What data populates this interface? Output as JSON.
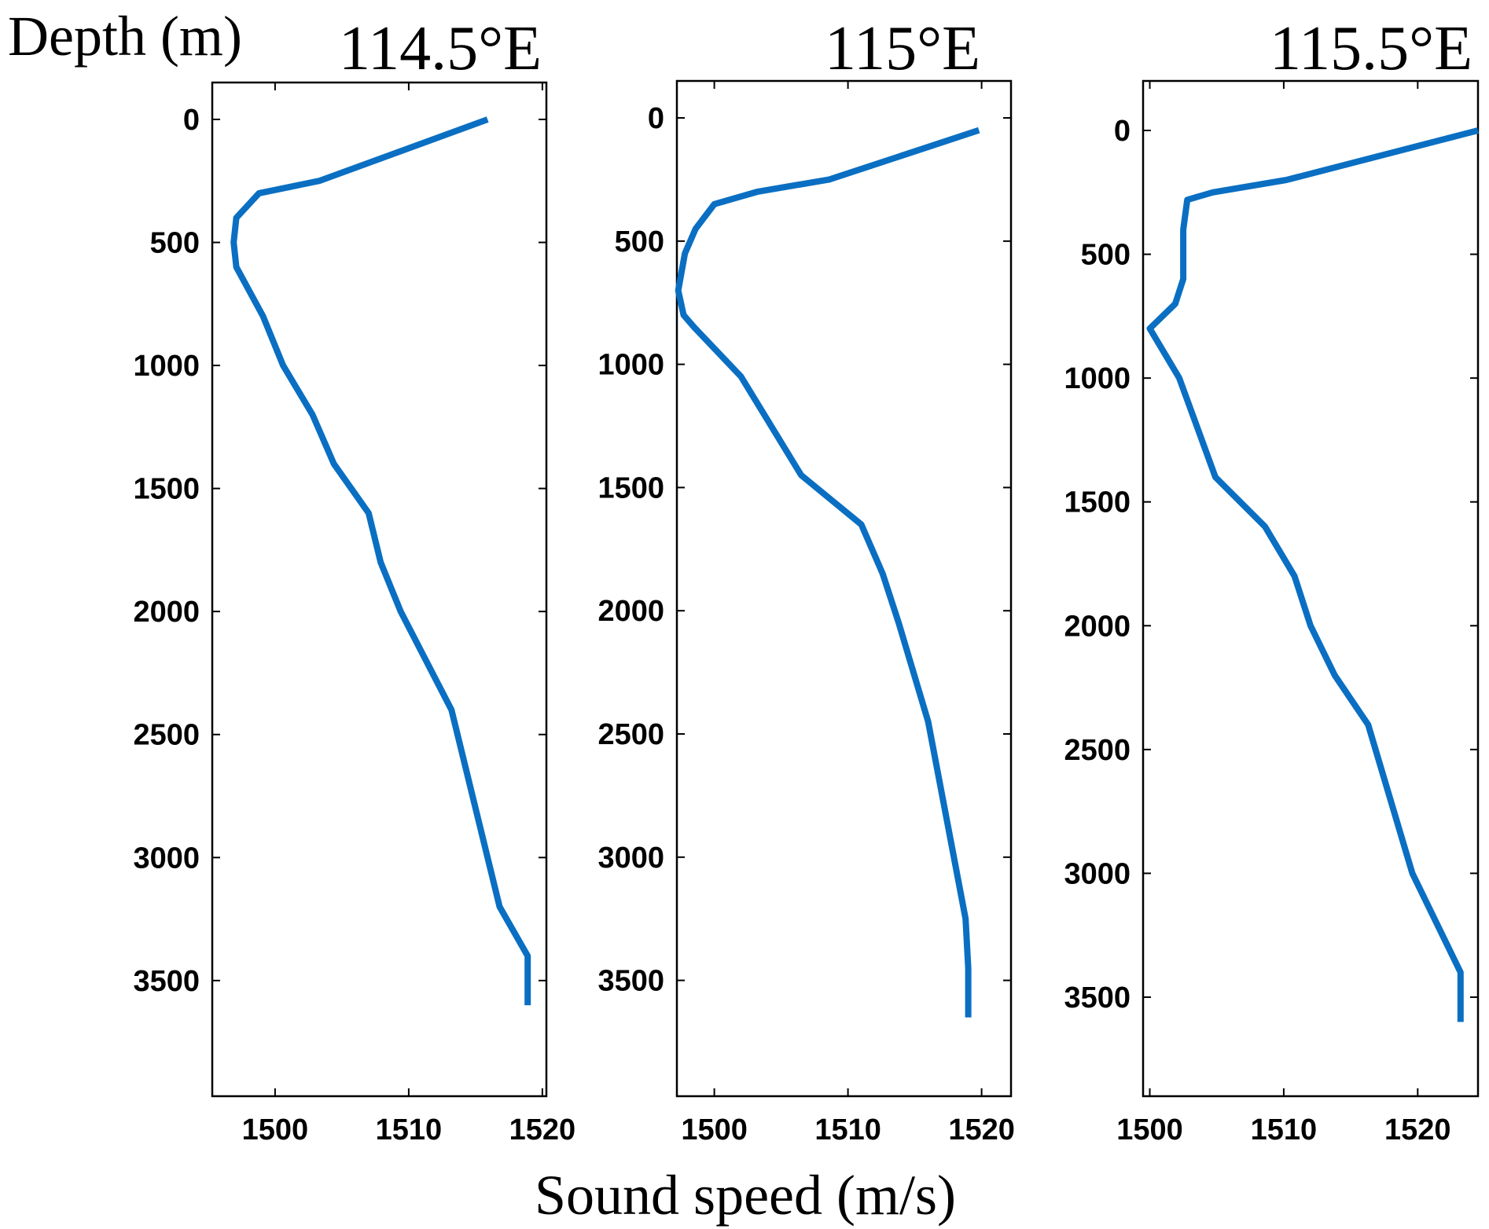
{
  "figure": {
    "ylabel": "Depth (m)",
    "xlabel": "Sound speed (m/s)",
    "line_color": "#0a6fc2",
    "tick_color": "#000000"
  },
  "chart_data": [
    {
      "type": "line",
      "title": "114.5°E",
      "xlim": [
        1495.3,
        1520.3
      ],
      "ylim": [
        3970,
        -150
      ],
      "xticks": [
        1500,
        1510,
        1520
      ],
      "xtick_labels": [
        "1500",
        "1510",
        "1520"
      ],
      "yticks": [
        0,
        500,
        1000,
        1500,
        2000,
        2500,
        3000,
        3500
      ],
      "ytick_labels": [
        "0",
        "500",
        "1000",
        "1500",
        "2000",
        "2500",
        "3000",
        "3500"
      ],
      "series": [
        {
          "name": "114.5°E",
          "speed": [
            1515.9,
            1503.3,
            1498.8,
            1497.1,
            1496.9,
            1497.1,
            1499.1,
            1500.6,
            1502.8,
            1504.4,
            1507.0,
            1507.9,
            1509.4,
            1511.3,
            1513.2,
            1515.0,
            1516.8,
            1518.9,
            1518.9
          ],
          "depth": [
            0,
            250,
            300,
            400,
            500,
            600,
            800,
            1000,
            1200,
            1400,
            1600,
            1800,
            2000,
            2200,
            2400,
            2800,
            3200,
            3400,
            3600
          ]
        }
      ]
    },
    {
      "type": "line",
      "title": "115°E",
      "xlim": [
        1497.2,
        1522.2
      ],
      "ylim": [
        3970,
        -150
      ],
      "xticks": [
        1500,
        1510,
        1520
      ],
      "xtick_labels": [
        "1500",
        "1510",
        "1520"
      ],
      "yticks": [
        0,
        500,
        1000,
        1500,
        2000,
        2500,
        3000,
        3500
      ],
      "ytick_labels": [
        "0",
        "500",
        "1000",
        "1500",
        "2000",
        "2500",
        "3000",
        "3500"
      ],
      "series": [
        {
          "name": "115°E",
          "speed": [
            1519.8,
            1508.6,
            1503.2,
            1500.0,
            1498.6,
            1497.8,
            1497.3,
            1497.7,
            1498.5,
            1502.0,
            1506.5,
            1511.0,
            1512.6,
            1513.8,
            1516.0,
            1518.8,
            1519.0,
            1519.0
          ],
          "depth": [
            50,
            250,
            300,
            350,
            450,
            550,
            700,
            800,
            850,
            1050,
            1450,
            1650,
            1850,
            2050,
            2450,
            3250,
            3450,
            3650
          ]
        }
      ]
    },
    {
      "type": "line",
      "title": "115.5°E",
      "xlim": [
        1499.5,
        1524.5
      ],
      "ylim": [
        3900,
        -200
      ],
      "xticks": [
        1500,
        1510,
        1520
      ],
      "xtick_labels": [
        "1500",
        "1510",
        "1520"
      ],
      "yticks": [
        0,
        500,
        1000,
        1500,
        2000,
        2500,
        3000,
        3500
      ],
      "ytick_labels": [
        "0",
        "500",
        "1000",
        "1500",
        "2000",
        "2500",
        "3000",
        "3500"
      ],
      "series": [
        {
          "name": "115.5°E",
          "speed": [
            1524.5,
            1510.2,
            1504.7,
            1502.8,
            1502.5,
            1502.5,
            1501.9,
            1500.0,
            1502.2,
            1504.9,
            1508.6,
            1510.8,
            1512.0,
            1513.8,
            1516.3,
            1519.6,
            1523.2,
            1523.2
          ],
          "depth": [
            0,
            200,
            250,
            280,
            400,
            600,
            700,
            800,
            1000,
            1400,
            1600,
            1800,
            2000,
            2200,
            2400,
            3000,
            3400,
            3600
          ]
        }
      ]
    }
  ]
}
